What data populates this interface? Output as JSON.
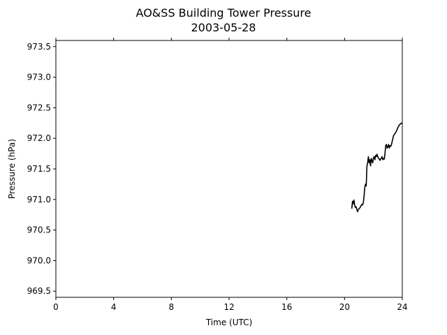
{
  "chart_data": {
    "type": "line",
    "title": "AO&SS Building Tower Pressure",
    "subtitle": "2003-05-28",
    "xlabel": "Time (UTC)",
    "ylabel": "Pressure (hPa)",
    "xlim": [
      0,
      24
    ],
    "ylim": [
      969.4,
      973.6
    ],
    "xticks": [
      0,
      4,
      8,
      12,
      16,
      20,
      24
    ],
    "yticks": [
      969.5,
      970.0,
      970.5,
      971.0,
      971.5,
      972.0,
      972.5,
      973.0,
      973.5
    ],
    "ytick_labels": [
      "969.5",
      "970.0",
      "970.5",
      "971.0",
      "971.5",
      "972.0",
      "972.5",
      "973.0",
      "973.5"
    ],
    "grid": false,
    "series": [
      {
        "color": "#000000",
        "x": [
          20.5,
          20.55,
          20.6,
          20.65,
          20.7,
          20.75,
          20.8,
          20.85,
          20.9,
          20.95,
          21.0,
          21.05,
          21.1,
          21.15,
          21.2,
          21.25,
          21.3,
          21.35,
          21.4,
          21.45,
          21.5,
          21.55,
          21.6,
          21.65,
          21.7,
          21.75,
          21.8,
          21.85,
          21.9,
          21.95,
          22.0,
          22.05,
          22.1,
          22.15,
          22.2,
          22.25,
          22.3,
          22.35,
          22.4,
          22.45,
          22.5,
          22.55,
          22.6,
          22.65,
          22.7,
          22.75,
          22.8,
          22.85,
          22.9,
          22.95,
          23.0,
          23.05,
          23.1,
          23.15,
          23.2,
          23.25,
          23.3,
          23.35,
          23.4,
          23.45,
          23.5,
          23.55,
          23.6,
          23.65,
          23.7,
          23.75,
          23.8,
          23.85,
          23.9,
          23.95,
          24.0
        ],
        "y": [
          970.85,
          970.97,
          970.93,
          970.99,
          970.91,
          970.87,
          970.88,
          970.84,
          970.8,
          970.83,
          970.85,
          970.86,
          970.88,
          970.9,
          970.92,
          970.91,
          970.95,
          971.05,
          971.2,
          971.25,
          971.22,
          971.55,
          971.6,
          971.7,
          971.6,
          971.65,
          971.55,
          971.67,
          971.63,
          971.6,
          971.68,
          971.7,
          971.65,
          971.72,
          971.7,
          971.74,
          971.7,
          971.68,
          971.66,
          971.64,
          971.66,
          971.68,
          971.7,
          971.65,
          971.67,
          971.66,
          971.75,
          971.88,
          971.9,
          971.84,
          971.86,
          971.9,
          971.84,
          971.88,
          971.87,
          971.9,
          971.95,
          972.0,
          972.05,
          972.06,
          972.08,
          972.1,
          972.12,
          972.15,
          972.18,
          972.2,
          972.22,
          972.23,
          972.24,
          972.25,
          972.24
        ]
      }
    ]
  }
}
